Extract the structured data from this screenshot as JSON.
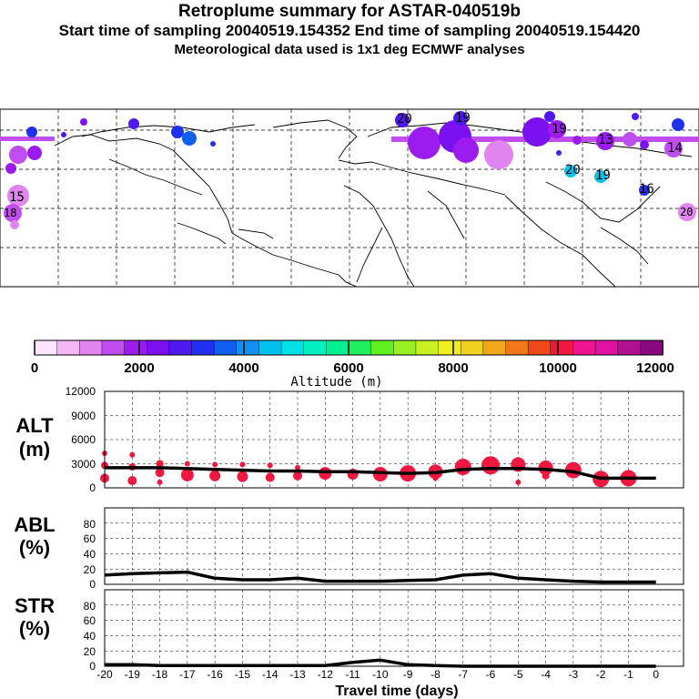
{
  "header": {
    "title": "Retroplume summary for ASTAR-040519b",
    "subtitle": "Start time of sampling 20040519.154352     End time of sampling 20040519.154420",
    "met_note": "Meteorological data used is 1x1 deg ECMWF analyses"
  },
  "colorbar": {
    "colors": [
      "#fde6fd",
      "#f3b8f3",
      "#e085f0",
      "#c04df0",
      "#9c1cf0",
      "#7b10f0",
      "#4f18f0",
      "#2030f0",
      "#1060f0",
      "#1090f0",
      "#00c0f0",
      "#00e0e8",
      "#00f0c0",
      "#00f090",
      "#20f060",
      "#60f020",
      "#98f020",
      "#c8f020",
      "#f0f020",
      "#f0d020",
      "#f0a818",
      "#f07818",
      "#f04818",
      "#f01840",
      "#f01490",
      "#e010a0",
      "#b01090",
      "#880880"
    ],
    "ticks": [
      "0",
      "2000",
      "4000",
      "6000",
      "8000",
      "10000",
      "12000"
    ],
    "title": "Altitude (m)"
  },
  "map": {
    "labels": [
      {
        "text": "20",
        "color": "#7b10f0"
      },
      {
        "text": "19",
        "color": "#4f18f0"
      },
      {
        "text": "19",
        "color": "#7b10f0"
      },
      {
        "text": "20",
        "color": "#00c0f0"
      },
      {
        "text": "19",
        "color": "#00c0f0"
      },
      {
        "text": "16",
        "color": "#2030f0"
      },
      {
        "text": "20",
        "color": "#e085f0"
      },
      {
        "text": "15",
        "color": "#c04df0"
      },
      {
        "text": "18",
        "color": "#c04df0"
      },
      {
        "text": "14",
        "color": "#9c1cf0"
      },
      {
        "text": "13",
        "color": "#9c1cf0"
      }
    ]
  },
  "chart_data": [
    {
      "type": "line",
      "panel": "ALT",
      "title": "ALT",
      "ylabel": "(m)",
      "ylim": [
        0,
        12000
      ],
      "yticks": [
        "12000",
        "9000",
        "6000",
        "3000",
        "0"
      ],
      "x": [
        -20,
        -19,
        -18,
        -17,
        -16,
        -15,
        -14,
        -13,
        -12,
        -11,
        -10,
        -9,
        -8,
        -7,
        -6,
        -5,
        -4,
        -3,
        -2,
        -1,
        0
      ],
      "values": [
        2500,
        2500,
        2500,
        2400,
        2300,
        2200,
        2100,
        2100,
        2000,
        2000,
        1900,
        1800,
        1900,
        2300,
        2400,
        2400,
        2300,
        2000,
        1200,
        1200,
        1200
      ],
      "bubbles": [
        {
          "x": -20,
          "y": 4300,
          "r": 3
        },
        {
          "x": -20,
          "y": 2800,
          "r": 4
        },
        {
          "x": -20,
          "y": 1200,
          "r": 5
        },
        {
          "x": -19,
          "y": 4100,
          "r": 3
        },
        {
          "x": -19,
          "y": 2600,
          "r": 4
        },
        {
          "x": -19,
          "y": 900,
          "r": 5
        },
        {
          "x": -18,
          "y": 3000,
          "r": 4
        },
        {
          "x": -18,
          "y": 1900,
          "r": 5
        },
        {
          "x": -18,
          "y": 700,
          "r": 3
        },
        {
          "x": -17,
          "y": 3000,
          "r": 3
        },
        {
          "x": -17,
          "y": 1600,
          "r": 7
        },
        {
          "x": -16,
          "y": 2900,
          "r": 3
        },
        {
          "x": -16,
          "y": 1500,
          "r": 6
        },
        {
          "x": -15,
          "y": 2900,
          "r": 3
        },
        {
          "x": -15,
          "y": 1400,
          "r": 6
        },
        {
          "x": -14,
          "y": 2800,
          "r": 3
        },
        {
          "x": -14,
          "y": 1300,
          "r": 5
        },
        {
          "x": -13,
          "y": 2500,
          "r": 3
        },
        {
          "x": -13,
          "y": 1500,
          "r": 5
        },
        {
          "x": -12,
          "y": 1800,
          "r": 7
        },
        {
          "x": -11,
          "y": 1700,
          "r": 6
        },
        {
          "x": -10,
          "y": 1700,
          "r": 8
        },
        {
          "x": -9,
          "y": 1800,
          "r": 9
        },
        {
          "x": -8,
          "y": 2000,
          "r": 8
        },
        {
          "x": -8,
          "y": 1200,
          "r": 3
        },
        {
          "x": -7,
          "y": 2600,
          "r": 9
        },
        {
          "x": -6,
          "y": 2800,
          "r": 10
        },
        {
          "x": -5,
          "y": 2900,
          "r": 8
        },
        {
          "x": -5,
          "y": 700,
          "r": 3
        },
        {
          "x": -4,
          "y": 2500,
          "r": 8
        },
        {
          "x": -4,
          "y": 1500,
          "r": 4
        },
        {
          "x": -3,
          "y": 2200,
          "r": 9
        },
        {
          "x": -2,
          "y": 1100,
          "r": 9
        },
        {
          "x": -1,
          "y": 1200,
          "r": 9
        }
      ]
    },
    {
      "type": "line",
      "panel": "ABL",
      "title": "ABL",
      "ylabel": "(%)",
      "ylim": [
        0,
        100
      ],
      "yticks": [
        "80",
        "60",
        "40",
        "20",
        "0"
      ],
      "x": [
        -20,
        -19,
        -18,
        -17,
        -16,
        -15,
        -14,
        -13,
        -12,
        -11,
        -10,
        -9,
        -8,
        -7,
        -6,
        -5,
        -4,
        -3,
        -2,
        -1,
        0
      ],
      "values": [
        12,
        14,
        15,
        16,
        8,
        6,
        6,
        8,
        4,
        4,
        4,
        5,
        6,
        12,
        14,
        8,
        6,
        4,
        3,
        3,
        3
      ]
    },
    {
      "type": "line",
      "panel": "STR",
      "title": "STR",
      "ylabel": "(%)",
      "ylim": [
        0,
        100
      ],
      "yticks": [
        "80",
        "60",
        "40",
        "20",
        "0"
      ],
      "xlabel": "Travel time (days)",
      "xticks": [
        "-20",
        "-19",
        "-18",
        "-17",
        "-16",
        "-15",
        "-14",
        "-13",
        "-12",
        "-11",
        "-10",
        "-9",
        "-8",
        "-7",
        "-6",
        "-5",
        "-4",
        "-3",
        "-2",
        "-1",
        "0"
      ],
      "x": [
        -20,
        -19,
        -18,
        -17,
        -16,
        -15,
        -14,
        -13,
        -12,
        -11,
        -10,
        -9,
        -8,
        -7,
        -6,
        -5,
        -4,
        -3,
        -2,
        -1,
        0
      ],
      "values": [
        2,
        2,
        1,
        1,
        1,
        1,
        1,
        1,
        1,
        5,
        8,
        2,
        1,
        0,
        0,
        0,
        0,
        0,
        0,
        0,
        0
      ]
    }
  ]
}
